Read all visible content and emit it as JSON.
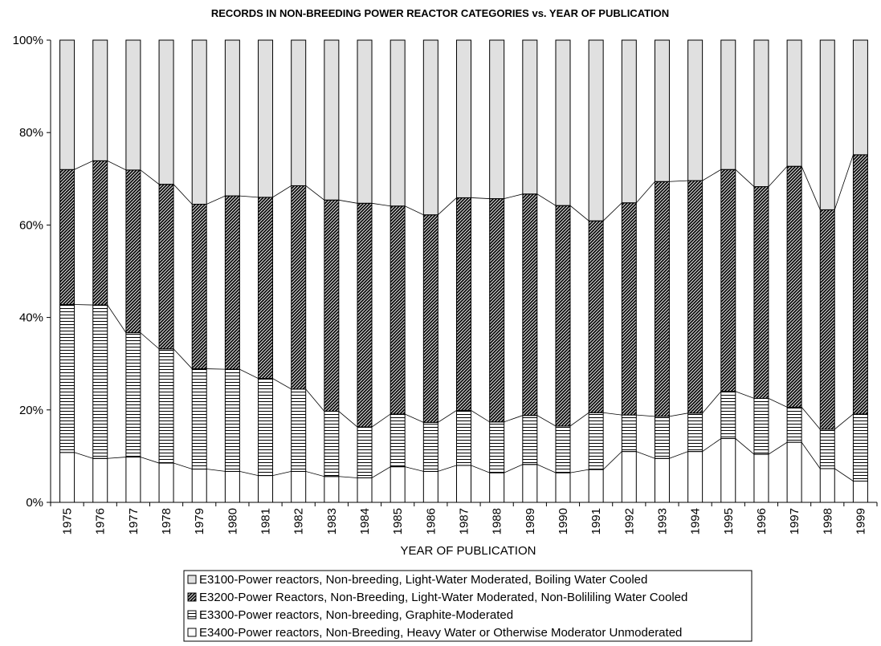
{
  "chart_data": {
    "type": "bar",
    "stacked": true,
    "percent_stacked": true,
    "title": "RECORDS IN NON-BREEDING POWER REACTOR CATEGORIES vs. YEAR OF PUBLICATION",
    "xlabel": "YEAR OF PUBLICATION",
    "ylabel": "",
    "ylim": [
      0,
      100
    ],
    "y_ticks": [
      "0%",
      "20%",
      "40%",
      "60%",
      "80%",
      "100%"
    ],
    "grid": false,
    "legend_position": "bottom",
    "categories": [
      "1975",
      "1976",
      "1977",
      "1978",
      "1979",
      "1980",
      "1981",
      "1982",
      "1983",
      "1984",
      "1985",
      "1986",
      "1987",
      "1988",
      "1989",
      "1990",
      "1991",
      "1992",
      "1993",
      "1994",
      "1995",
      "1996",
      "1997",
      "1998",
      "1999"
    ],
    "series": [
      {
        "name": "E3400-Power reactors, Non-Breeding, Heavy Water or Otherwise Moderator Unmoderated",
        "pattern": "white",
        "values": [
          10.8,
          9.5,
          9.8,
          8.5,
          7.2,
          6.7,
          5.8,
          6.7,
          5.6,
          5.3,
          7.7,
          6.7,
          8.0,
          6.4,
          8.2,
          6.4,
          7.1,
          11.0,
          9.5,
          11.0,
          13.8,
          10.4,
          13.0,
          7.3,
          4.6
        ]
      },
      {
        "name": "E3300-Power reactors, Non-breeding, Graphite-Moderated",
        "pattern": "horizontal-lines",
        "values": [
          32.0,
          33.2,
          26.9,
          24.7,
          21.7,
          22.1,
          21.0,
          17.8,
          14.1,
          11.0,
          11.4,
          10.6,
          11.9,
          11.0,
          10.6,
          10.1,
          12.3,
          7.9,
          9.1,
          8.3,
          10.2,
          12.1,
          7.6,
          8.5,
          14.5
        ]
      },
      {
        "name": "E3200-Power Reactors, Non-Breeding, Light-Water Moderated, Non-Bolililing Water Cooled",
        "pattern": "dark-diagonal-hatch",
        "values": [
          29.2,
          31.2,
          35.2,
          35.6,
          35.6,
          37.5,
          39.2,
          44.0,
          45.7,
          48.4,
          45.0,
          44.9,
          46.0,
          48.3,
          47.9,
          47.7,
          41.5,
          45.9,
          50.8,
          50.3,
          48.0,
          45.8,
          52.1,
          47.5,
          56.1
        ]
      },
      {
        "name": "E3100-Power reactors, Non-breeding, Light-Water Moderated, Boiling Water Cooled",
        "pattern": "light-gray",
        "values": [
          28.0,
          26.1,
          28.1,
          31.2,
          35.5,
          33.7,
          34.0,
          31.5,
          34.6,
          35.3,
          35.9,
          37.8,
          34.1,
          34.3,
          33.3,
          35.8,
          39.1,
          35.2,
          30.6,
          30.4,
          28.0,
          31.7,
          27.3,
          36.7,
          24.8
        ]
      }
    ],
    "legend_order": [
      3,
      2,
      1,
      0
    ]
  }
}
